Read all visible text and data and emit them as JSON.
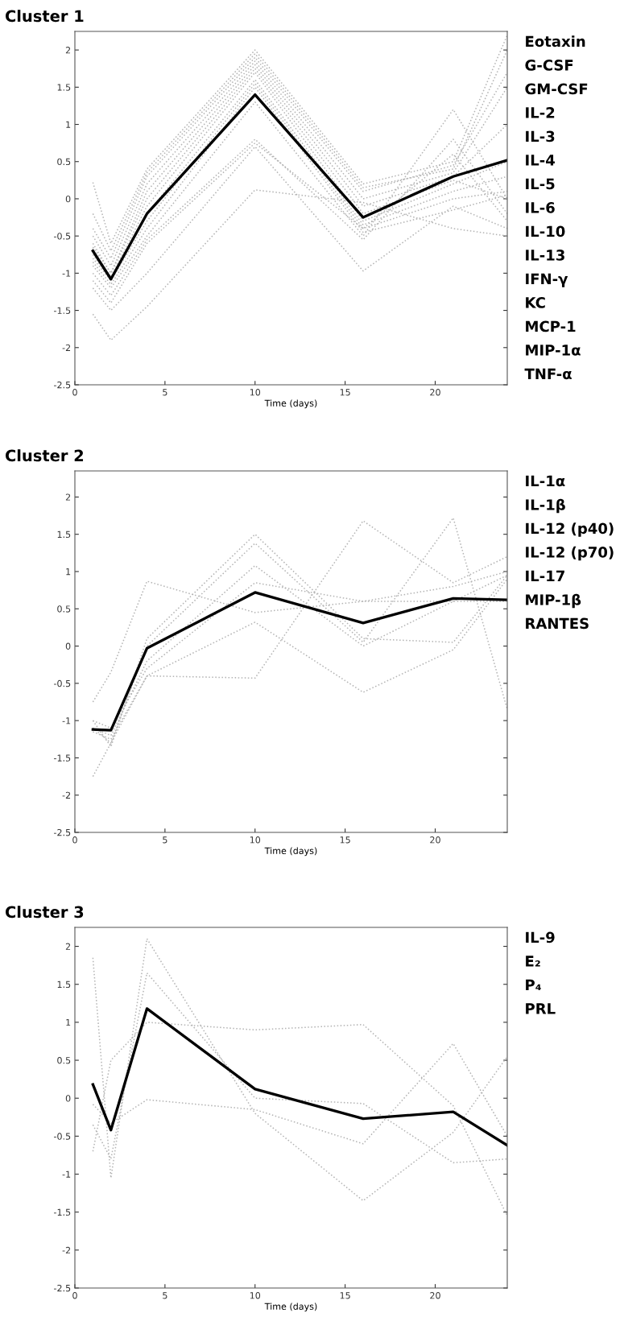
{
  "chart_data": [
    {
      "type": "line",
      "title": "Cluster 1",
      "xlabel": "Time (days)",
      "x": [
        1,
        2,
        4,
        10,
        16,
        21,
        24
      ],
      "xlim": [
        0,
        24
      ],
      "ylim": [
        -2.5,
        2.25
      ],
      "xticks": [
        0,
        5,
        10,
        15,
        20
      ],
      "yticks": [
        -2.5,
        -2,
        -1.5,
        -1,
        -0.5,
        0,
        0.5,
        1,
        1.5,
        2
      ],
      "annotations": [
        "Eotaxin",
        "G-CSF",
        "GM-CSF",
        "IL-2",
        "IL-3",
        "IL-4",
        "IL-5",
        "IL-6",
        "IL-10",
        "IL-13",
        "IFN-γ",
        "KC",
        "MCP-1",
        "MIP-1α",
        "TNF-α"
      ],
      "series": [
        {
          "color": "#b4b4b4",
          "line_style": "dotted",
          "values": [
            0.22,
            -0.6,
            0.4,
            2.0,
            0.2,
            0.5,
            2.2
          ]
        },
        {
          "color": "#b4b4b4",
          "line_style": "dotted",
          "values": [
            -0.2,
            -0.7,
            0.35,
            1.95,
            0.15,
            0.4,
            2.0
          ]
        },
        {
          "color": "#b4b4b4",
          "line_style": "dotted",
          "values": [
            -0.4,
            -0.8,
            0.3,
            1.9,
            0.1,
            0.45,
            1.7
          ]
        },
        {
          "color": "#b4b4b4",
          "line_style": "dotted",
          "values": [
            -0.5,
            -0.9,
            0.2,
            1.85,
            0.0,
            0.35,
            1.5
          ]
        },
        {
          "color": "#b4b4b4",
          "line_style": "dotted",
          "values": [
            -0.6,
            -1.0,
            0.1,
            1.8,
            -0.1,
            0.3,
            1.0
          ]
        },
        {
          "color": "#b4b4b4",
          "line_style": "dotted",
          "values": [
            -0.65,
            -1.0,
            0.0,
            1.75,
            -0.2,
            0.25,
            0.0
          ]
        },
        {
          "color": "#b4b4b4",
          "line_style": "dotted",
          "values": [
            -0.7,
            -1.05,
            -0.1,
            1.7,
            -0.3,
            0.2,
            0.5
          ]
        },
        {
          "color": "#b4b4b4",
          "line_style": "dotted",
          "values": [
            -0.75,
            -1.1,
            -0.2,
            1.6,
            -0.35,
            0.1,
            0.3
          ]
        },
        {
          "color": "#b4b4b4",
          "line_style": "dotted",
          "values": [
            -0.8,
            -1.1,
            -0.3,
            1.55,
            -0.4,
            0.0,
            0.1
          ]
        },
        {
          "color": "#b4b4b4",
          "line_style": "dotted",
          "values": [
            -0.85,
            -1.15,
            -0.4,
            1.5,
            -0.45,
            -0.15,
            0.05
          ]
        },
        {
          "color": "#b4b4b4",
          "line_style": "dotted",
          "values": [
            -0.9,
            -1.2,
            -0.5,
            1.3,
            -0.5,
            1.2,
            0.0
          ]
        },
        {
          "color": "#b4b4b4",
          "line_style": "dotted",
          "values": [
            -1.0,
            -1.3,
            -0.55,
            0.8,
            -0.55,
            0.8,
            -0.2
          ]
        },
        {
          "color": "#b4b4b4",
          "line_style": "dotted",
          "values": [
            -1.1,
            -1.4,
            -0.6,
            0.75,
            -0.4,
            0.6,
            -0.3
          ]
        },
        {
          "color": "#b4b4b4",
          "line_style": "dotted",
          "values": [
            -1.2,
            -1.5,
            -1.0,
            0.7,
            -0.97,
            -0.1,
            -0.4
          ]
        },
        {
          "color": "#b4b4b4",
          "line_style": "dotted",
          "values": [
            -1.55,
            -1.9,
            -1.45,
            0.12,
            -0.05,
            -0.4,
            -0.5
          ]
        },
        {
          "color": "#000000",
          "line_style": "solid",
          "values": [
            -0.7,
            -1.08,
            -0.2,
            1.4,
            -0.25,
            0.3,
            0.52
          ]
        }
      ]
    },
    {
      "type": "line",
      "title": "Cluster 2",
      "xlabel": "Time (days)",
      "x": [
        1,
        2,
        4,
        10,
        16,
        21,
        24
      ],
      "xlim": [
        0,
        24
      ],
      "ylim": [
        -2.5,
        2.35
      ],
      "xticks": [
        0,
        5,
        10,
        15,
        20
      ],
      "yticks": [
        -2.5,
        -2,
        -1.5,
        -1,
        -0.5,
        0,
        0.5,
        1,
        1.5,
        2
      ],
      "annotations": [
        "IL-1α",
        "IL-1β",
        "IL-12 (p40)",
        "IL-12 (p70)",
        "IL-17",
        "MIP-1β",
        "RANTES"
      ],
      "series": [
        {
          "color": "#b4b4b4",
          "line_style": "dotted",
          "values": [
            -0.75,
            -0.35,
            0.87,
            0.45,
            0.6,
            0.6,
            0.95
          ]
        },
        {
          "color": "#b4b4b4",
          "line_style": "dotted",
          "values": [
            -1.75,
            -1.3,
            -0.4,
            -0.43,
            1.68,
            0.85,
            1.2
          ]
        },
        {
          "color": "#b4b4b4",
          "line_style": "dotted",
          "values": [
            -1.0,
            -1.35,
            0.1,
            1.5,
            0.1,
            0.05,
            0.95
          ]
        },
        {
          "color": "#b4b4b4",
          "line_style": "dotted",
          "values": [
            -1.1,
            -1.3,
            0.0,
            1.38,
            0.05,
            1.72,
            -0.85
          ]
        },
        {
          "color": "#b4b4b4",
          "line_style": "dotted",
          "values": [
            -1.1,
            -1.2,
            -0.2,
            1.08,
            0.0,
            0.6,
            0.6
          ]
        },
        {
          "color": "#b4b4b4",
          "line_style": "dotted",
          "values": [
            -1.0,
            -1.1,
            -0.3,
            0.85,
            0.6,
            0.8,
            1.0
          ]
        },
        {
          "color": "#b4b4b4",
          "line_style": "dotted",
          "values": [
            -1.15,
            -1.25,
            -0.4,
            0.32,
            -0.62,
            -0.05,
            0.9
          ]
        },
        {
          "color": "#000000",
          "line_style": "solid",
          "values": [
            -1.12,
            -1.13,
            -0.03,
            0.72,
            0.31,
            0.64,
            0.62
          ]
        }
      ]
    },
    {
      "type": "line",
      "title": "Cluster 3",
      "xlabel": "Time (days)",
      "x": [
        1,
        2,
        4,
        10,
        16,
        21,
        24
      ],
      "xlim": [
        0,
        24
      ],
      "ylim": [
        -2.5,
        2.25
      ],
      "xticks": [
        0,
        5,
        10,
        15,
        20
      ],
      "yticks": [
        -2.5,
        -2,
        -1.5,
        -1,
        -0.5,
        0,
        0.5,
        1,
        1.5,
        2
      ],
      "annotations": [
        "IL-9",
        "E₂",
        "P₄",
        "PRL"
      ],
      "series": [
        {
          "color": "#b4b4b4",
          "line_style": "dotted",
          "values": [
            1.85,
            -1.05,
            2.1,
            -0.2,
            -1.35,
            -0.45,
            0.55
          ]
        },
        {
          "color": "#b4b4b4",
          "line_style": "dotted",
          "values": [
            -0.35,
            -0.8,
            1.65,
            0.0,
            -0.07,
            -0.85,
            -0.8
          ]
        },
        {
          "color": "#b4b4b4",
          "line_style": "dotted",
          "values": [
            -0.7,
            0.5,
            1.0,
            0.9,
            0.97,
            -0.1,
            -1.55
          ]
        },
        {
          "color": "#b4b4b4",
          "line_style": "dotted",
          "values": [
            -0.08,
            -0.33,
            -0.02,
            -0.15,
            -0.6,
            0.72,
            -0.5
          ]
        },
        {
          "color": "#000000",
          "line_style": "solid",
          "values": [
            0.18,
            -0.42,
            1.18,
            0.12,
            -0.27,
            -0.18,
            -0.62
          ]
        }
      ]
    }
  ]
}
